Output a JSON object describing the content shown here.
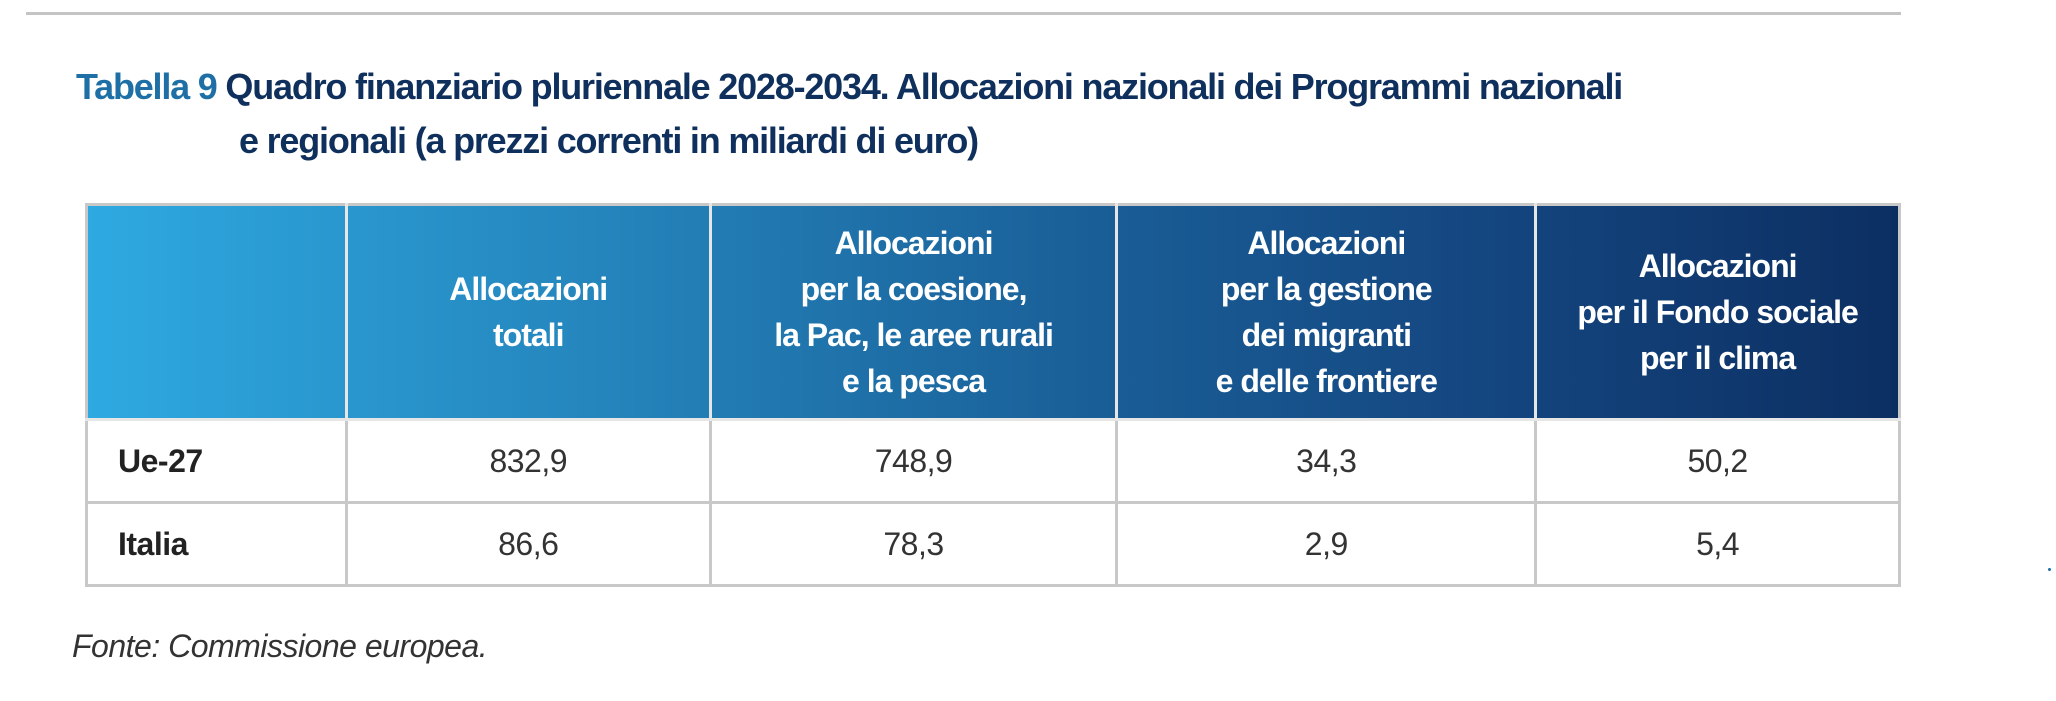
{
  "title": {
    "label": "Tabella 9",
    "line1": "Quadro finanziario pluriennale 2028-2034. Allocazioni nazionali dei Programmi nazionali",
    "line2": "e regionali (a prezzi correnti in miliardi di euro)"
  },
  "table": {
    "headers": [
      "",
      [
        "Allocazioni",
        "totali"
      ],
      [
        "Allocazioni",
        "per la coesione,",
        "la Pac, le aree rurali",
        "e la pesca"
      ],
      [
        "Allocazioni",
        "per la gestione",
        "dei migranti",
        "e delle frontiere"
      ],
      [
        "Allocazioni",
        "per il Fondo sociale",
        "per il clima"
      ]
    ],
    "rows": [
      {
        "label": "Ue-27",
        "values": [
          "832,9",
          "748,9",
          "34,3",
          "50,2"
        ]
      },
      {
        "label": "Italia",
        "values": [
          "86,6",
          "78,3",
          "2,9",
          "5,4"
        ]
      }
    ]
  },
  "source": "Fonte: Commissione europea.",
  "colors": {
    "label": "#1d6fa5",
    "title": "#0f2f5c",
    "header_start": "#2ea9e1",
    "header_end": "#0c2f62"
  }
}
